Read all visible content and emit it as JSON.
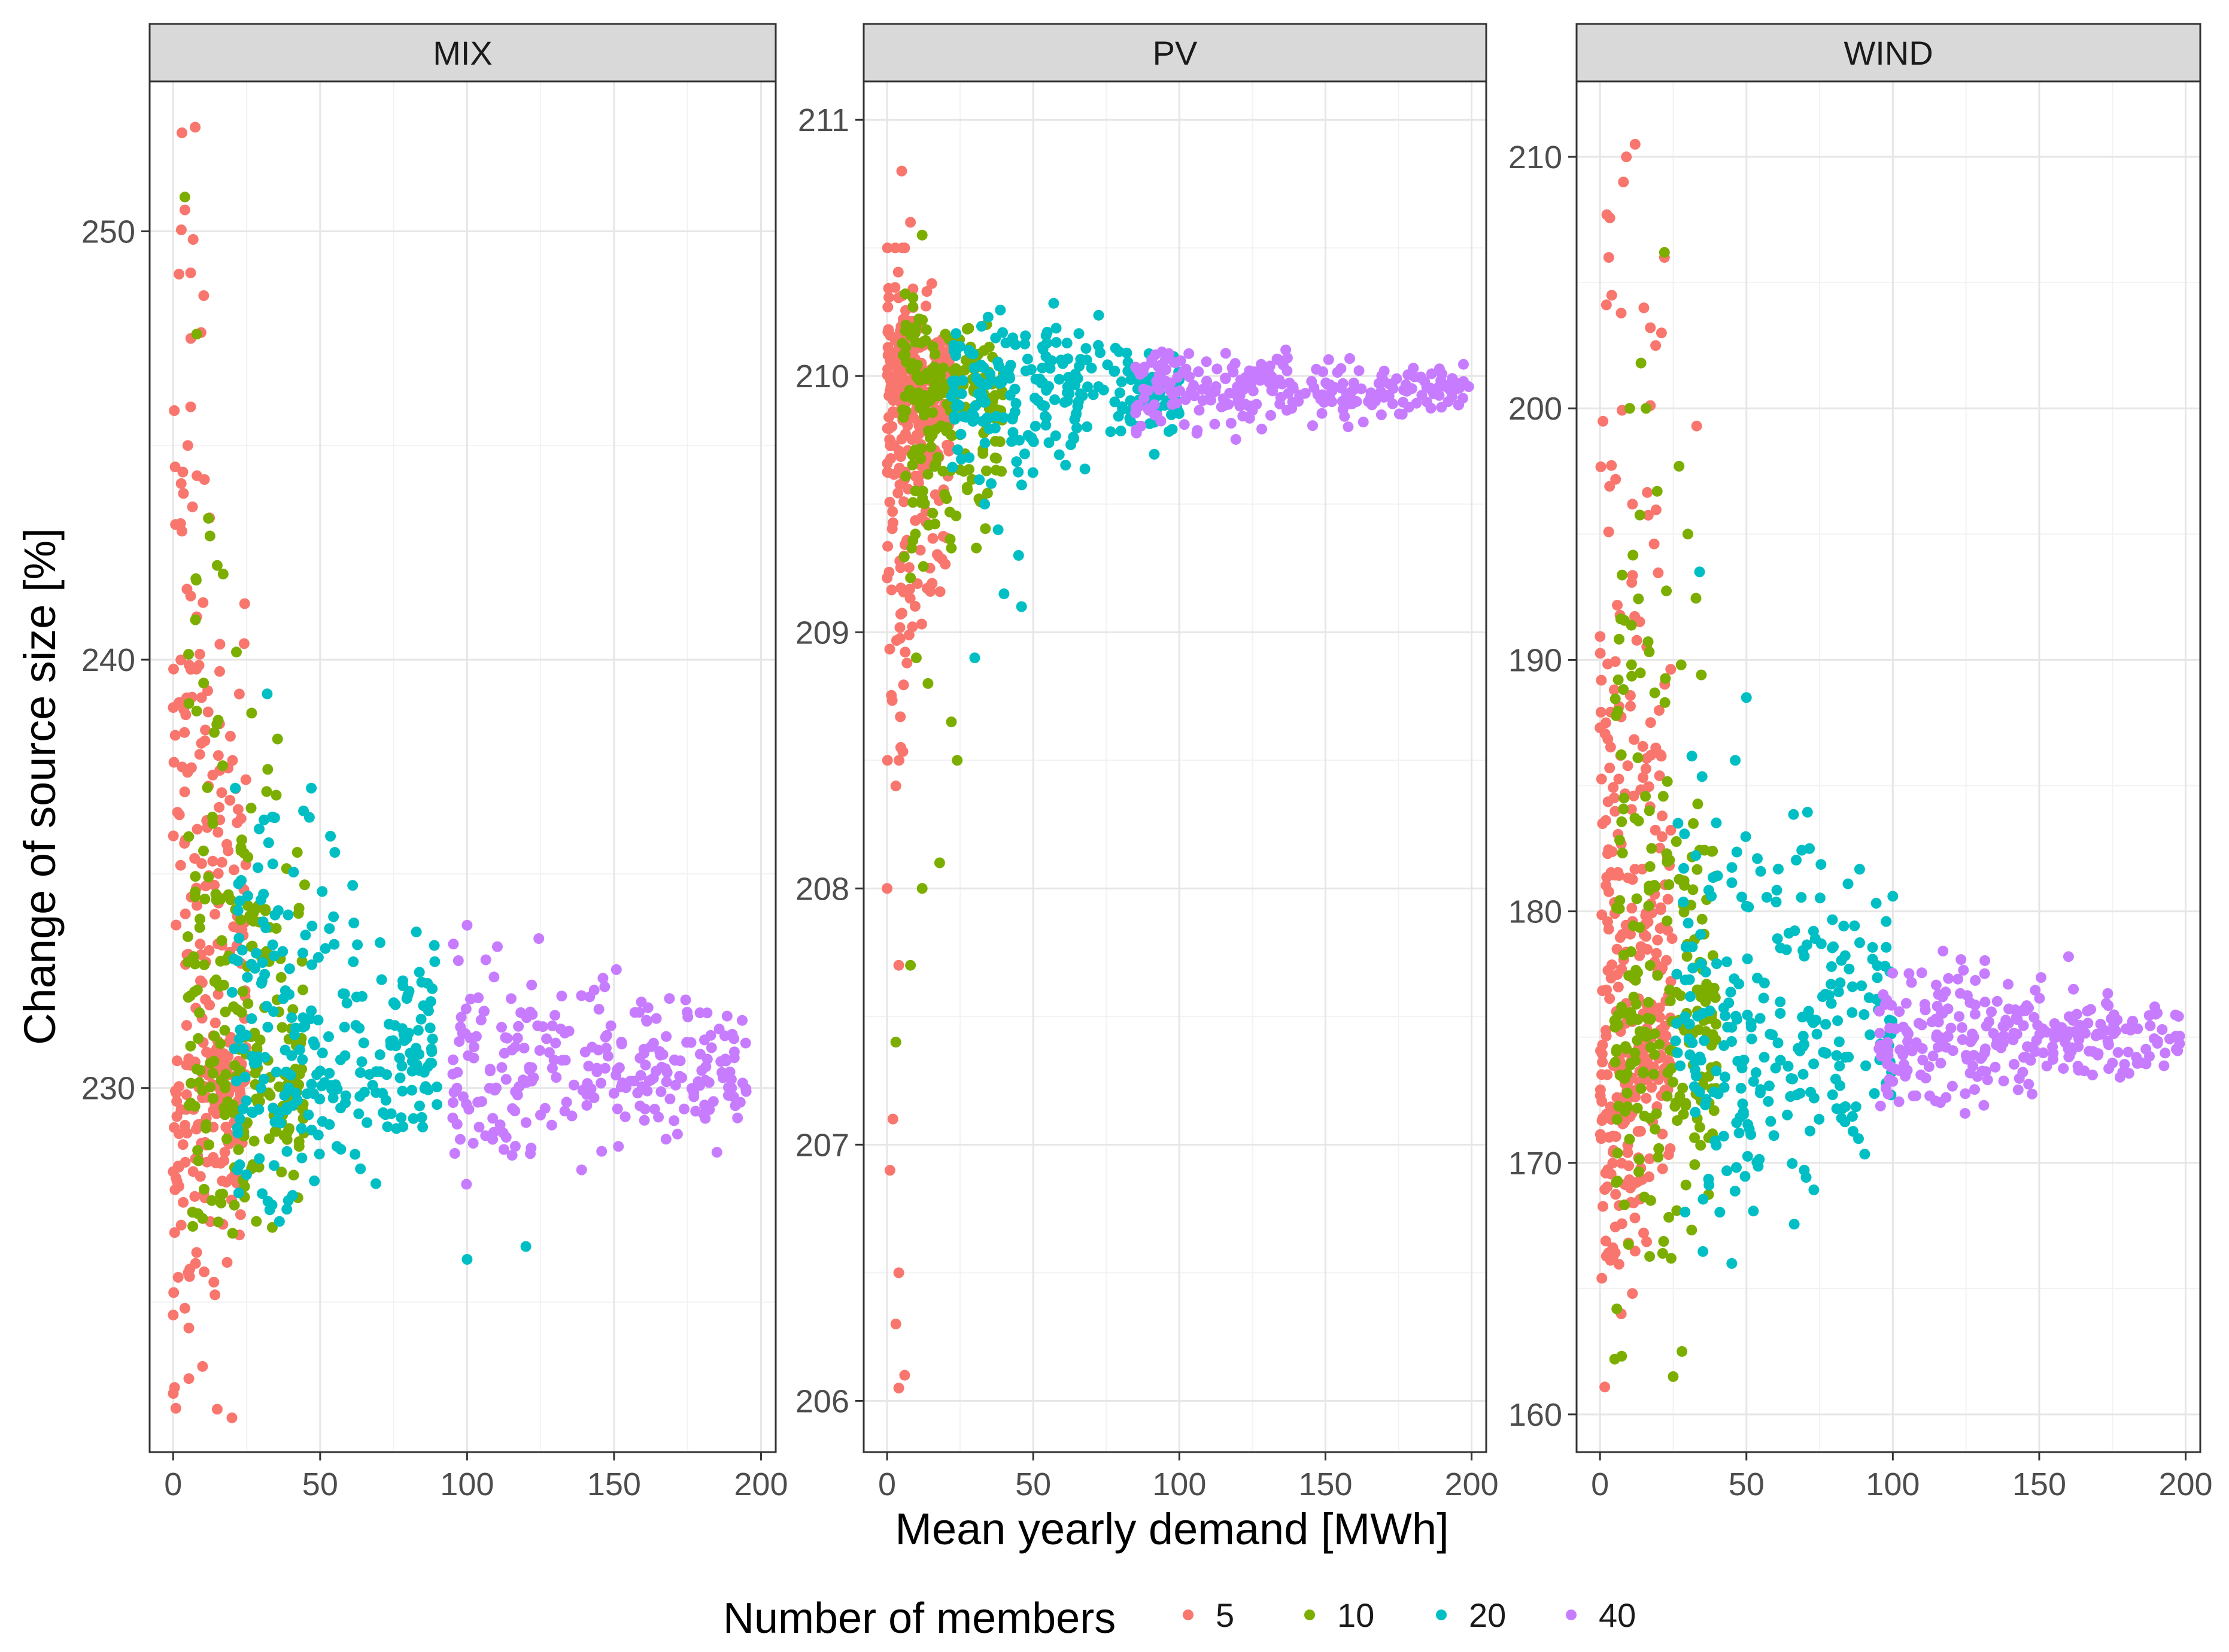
{
  "chart_data": {
    "type": "scatter",
    "xlabel": "Mean yearly demand [MWh]",
    "ylabel": "Change of source size [%]",
    "legend": {
      "title": "Number of members",
      "placement": "bottom",
      "entries": [
        {
          "label": "5",
          "color": "#F8766D"
        },
        {
          "label": "10",
          "color": "#7CAE00"
        },
        {
          "label": "20",
          "color": "#00BFC4"
        },
        {
          "label": "40",
          "color": "#C77CFF"
        }
      ]
    },
    "grid": true,
    "panels": [
      {
        "facet": "MIX",
        "xlim": [
          -8,
          205
        ],
        "ylim": [
          221.5,
          253.5
        ],
        "xticks": [
          0,
          50,
          100,
          150,
          200
        ],
        "yticks": [
          230,
          240,
          250
        ],
        "series": [
          {
            "name": "5",
            "x_range": [
              0,
              25
            ],
            "y_center": 231,
            "y_spread": [
              222.5,
              252.5
            ],
            "n": 300,
            "outliers": [
              [
                3,
                252.3
              ],
              [
                4,
                250.5
              ],
              [
                2,
                249
              ],
              [
                6,
                247.5
              ],
              [
                5,
                245
              ],
              [
                3,
                243
              ],
              [
                8,
                241
              ],
              [
                2,
                239
              ],
              [
                15,
                222.5
              ],
              [
                20,
                222.3
              ],
              [
                10,
                223.5
              ]
            ]
          },
          {
            "name": "10",
            "x_range": [
              5,
              45
            ],
            "y_center": 230.5,
            "y_spread": [
              225,
              243
            ],
            "n": 230,
            "outliers": [
              [
                4,
                250.8
              ],
              [
                8,
                247.6
              ],
              [
                12,
                243.3
              ],
              [
                15,
                242.2
              ],
              [
                17,
                242
              ],
              [
                14,
                238.3
              ],
              [
                8,
                238.8
              ]
            ]
          },
          {
            "name": "20",
            "x_range": [
              20,
              90
            ],
            "y_center": 231,
            "y_spread": [
              226,
              237
            ],
            "n": 260,
            "outliers": [
              [
                32,
                239.2
              ],
              [
                47,
                237
              ],
              [
                120,
                226.3
              ],
              [
                100,
                226
              ],
              [
                55,
                235.5
              ]
            ]
          },
          {
            "name": "40",
            "x_range": [
              95,
              195
            ],
            "y_center": 230.5,
            "y_spread": [
              227.5,
              234
            ],
            "n": 260,
            "outliers": [
              [
                100,
                233.8
              ],
              [
                192,
                229.3
              ],
              [
                185,
                228.5
              ]
            ]
          }
        ]
      },
      {
        "facet": "PV",
        "xlim": [
          -8,
          205
        ],
        "ylim": [
          205.8,
          211.15
        ],
        "xticks": [
          0,
          50,
          100,
          150,
          200
        ],
        "yticks": [
          206,
          207,
          208,
          209,
          210,
          211
        ],
        "series": [
          {
            "name": "5",
            "x_range": [
              0,
              22
            ],
            "y_center": 209.9,
            "y_spread": [
              208.5,
              210.5
            ],
            "n": 300,
            "outliers": [
              [
                5,
                210.8
              ],
              [
                8,
                210.6
              ],
              [
                6,
                210.5
              ],
              [
                3,
                208.4
              ],
              [
                4,
                207.7
              ],
              [
                3,
                207.4
              ],
              [
                2,
                207.1
              ],
              [
                1,
                206.9
              ],
              [
                4,
                206.5
              ],
              [
                3,
                206.3
              ],
              [
                6,
                206.1
              ],
              [
                4,
                206.05
              ],
              [
                0,
                208
              ]
            ]
          },
          {
            "name": "10",
            "x_range": [
              5,
              40
            ],
            "y_center": 209.9,
            "y_spread": [
              209,
              210.4
            ],
            "n": 200,
            "outliers": [
              [
                12,
                210.55
              ],
              [
                10,
                208.9
              ],
              [
                14,
                208.8
              ],
              [
                24,
                208.5
              ],
              [
                22,
                208.65
              ],
              [
                8,
                207.7
              ],
              [
                3,
                207.4
              ],
              [
                12,
                208
              ],
              [
                18,
                208.1
              ]
            ]
          },
          {
            "name": "20",
            "x_range": [
              22,
              100
            ],
            "y_center": 209.95,
            "y_spread": [
              209.5,
              210.3
            ],
            "n": 250,
            "outliers": [
              [
                46,
                209.1
              ],
              [
                40,
                209.15
              ],
              [
                30,
                208.9
              ],
              [
                45,
                209.3
              ],
              [
                38,
                209.4
              ]
            ]
          },
          {
            "name": "40",
            "x_range": [
              85,
              200
            ],
            "y_center": 209.95,
            "y_spread": [
              209.75,
              210.15
            ],
            "n": 270,
            "outliers": [
              [
                195,
                209.95
              ],
              [
                192,
                209.9
              ]
            ]
          }
        ]
      },
      {
        "facet": "WIND",
        "xlim": [
          -8,
          205
        ],
        "ylim": [
          158.5,
          213
        ],
        "xticks": [
          0,
          50,
          100,
          150,
          200
        ],
        "yticks": [
          160,
          170,
          180,
          190,
          200,
          210
        ],
        "series": [
          {
            "name": "5",
            "x_range": [
              0,
              25
            ],
            "y_center": 176,
            "y_spread": [
              161,
              210
            ],
            "n": 330,
            "outliers": [
              [
                12,
                210.5
              ],
              [
                9,
                210
              ],
              [
                8,
                209
              ],
              [
                3,
                206
              ],
              [
                4,
                204.5
              ],
              [
                22,
                206
              ],
              [
                21,
                203
              ],
              [
                19,
                202.5
              ],
              [
                33,
                199.3
              ],
              [
                2,
                187.5
              ],
              [
                0,
                187.3
              ]
            ]
          },
          {
            "name": "10",
            "x_range": [
              5,
              40
            ],
            "y_center": 176,
            "y_spread": [
              161,
              200
            ],
            "n": 240,
            "outliers": [
              [
                22,
                206.2
              ],
              [
                14,
                201.8
              ],
              [
                27,
                197.7
              ],
              [
                30,
                195
              ],
              [
                25,
                161.5
              ],
              [
                28,
                162.5
              ]
            ]
          },
          {
            "name": "20",
            "x_range": [
              25,
              100
            ],
            "y_center": 175.5,
            "y_spread": [
              166,
              188
            ],
            "n": 260,
            "outliers": [
              [
                34,
                193.5
              ],
              [
                50,
                188.5
              ],
              [
                45,
                166
              ],
              [
                100,
                180.6
              ]
            ]
          },
          {
            "name": "40",
            "x_range": [
              95,
              198
            ],
            "y_center": 175,
            "y_spread": [
              171.5,
              178.5
            ],
            "n": 270,
            "outliers": [
              [
                197,
                175
              ],
              [
                160,
                178.2
              ]
            ]
          }
        ]
      }
    ]
  }
}
